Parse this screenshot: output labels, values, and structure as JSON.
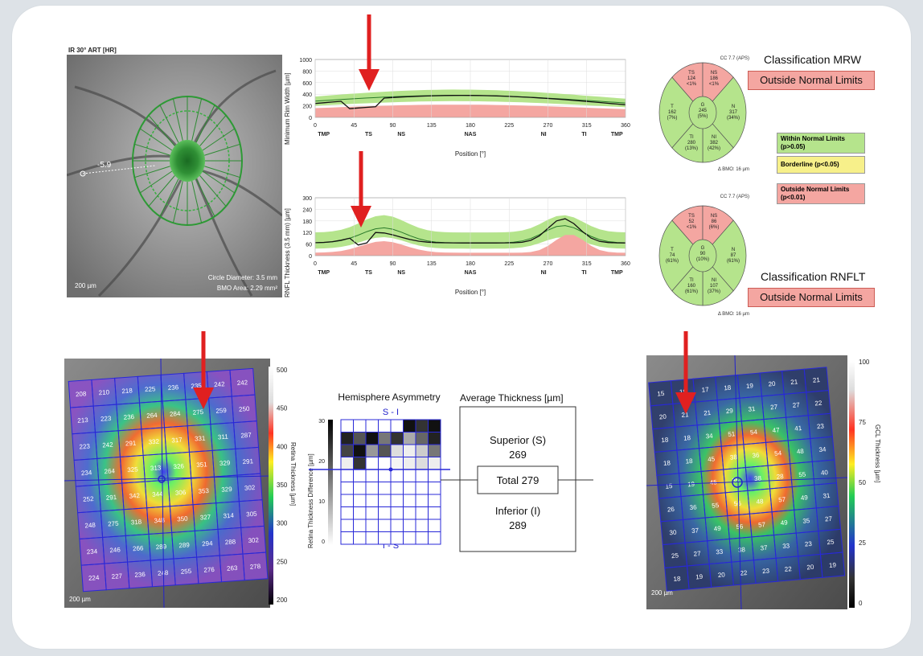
{
  "fundus": {
    "title": "IR 30° ART [HR]",
    "scale": "200 µm",
    "circle_diameter": "Circle Diameter: 3.5 mm",
    "bmo_area": "BMO Area: 2.29 mm²",
    "angle": "-5.9"
  },
  "mrw_chart": {
    "ylabel": "Minimum Rim Width [µm]",
    "yticks": [
      "1000",
      "800",
      "600",
      "400",
      "200",
      "0"
    ],
    "xticks": [
      "0",
      "45",
      "90",
      "135",
      "180",
      "225",
      "270",
      "315",
      "360"
    ],
    "sector_labels": [
      "TMP",
      "TS",
      "NS",
      "NAS",
      "NI",
      "TI",
      "TMP"
    ],
    "xlabel": "Position [°]"
  },
  "rnfl_chart": {
    "ylabel": "RNFL Thickness (3.5 mm) [µm]",
    "yticks": [
      "300",
      "240",
      "180",
      "120",
      "60",
      "0"
    ],
    "xticks": [
      "0",
      "45",
      "90",
      "135",
      "180",
      "225",
      "270",
      "315",
      "360"
    ],
    "sector_labels": [
      "TMP",
      "TS",
      "NS",
      "NAS",
      "NI",
      "TI",
      "TMP"
    ],
    "xlabel": "Position [°]"
  },
  "mrw_pie": {
    "header": "CC 7.7 (APS)",
    "footer": "Δ BMO: 16 µm",
    "TS": {
      "name": "TS",
      "value": "124",
      "pct": "<1%"
    },
    "NS": {
      "name": "NS",
      "value": "186",
      "pct": "<1%"
    },
    "T": {
      "name": "T",
      "value": "162",
      "pct": "(7%)"
    },
    "G": {
      "name": "G",
      "value": "245",
      "pct": "(5%)"
    },
    "N": {
      "name": "N",
      "value": "317",
      "pct": "(34%)"
    },
    "TI": {
      "name": "TI",
      "value": "280",
      "pct": "(13%)"
    },
    "NI": {
      "name": "NI",
      "value": "382",
      "pct": "(42%)"
    }
  },
  "rnfl_pie": {
    "header": "CC 7.7 (APS)",
    "footer": "Δ BMO: 16 µm",
    "TS": {
      "name": "TS",
      "value": "52",
      "pct": "<1%"
    },
    "NS": {
      "name": "NS",
      "value": "86",
      "pct": "(6%)"
    },
    "T": {
      "name": "T",
      "value": "74",
      "pct": "(61%)"
    },
    "G": {
      "name": "G",
      "value": "90",
      "pct": "(10%)"
    },
    "N": {
      "name": "N",
      "value": "87",
      "pct": "(61%)"
    },
    "TI": {
      "name": "TI",
      "value": "160",
      "pct": "(61%)"
    },
    "NI": {
      "name": "NI",
      "value": "107",
      "pct": "(37%)"
    }
  },
  "classification": {
    "mrw_title": "Classification MRW",
    "mrw_result": "Outside Normal Limits",
    "rnflt_title": "Classification RNFLT",
    "rnflt_result": "Outside Normal Limits",
    "legend": {
      "within": "Within Normal Limits",
      "within_p": "(p>0.05)",
      "borderline": "Borderline (p<0.05)",
      "outside": "Outside Normal Limits",
      "outside_p": "(p<0.01)"
    },
    "colors": {
      "within": "#b5e48c",
      "borderline": "#f7f08a",
      "outside": "#f4a6a1"
    }
  },
  "retina_map": {
    "scale": "200 µm",
    "colorbar_label": "Retina Thickness [µm]",
    "colorbar_ticks": [
      "500",
      "450",
      "400",
      "350",
      "300",
      "250",
      "200"
    ],
    "grid": [
      [
        "208",
        "210",
        "218",
        "225",
        "236",
        "235",
        "242",
        "242"
      ],
      [
        "213",
        "223",
        "236",
        "264",
        "284",
        "275",
        "259",
        "250"
      ],
      [
        "223",
        "242",
        "291",
        "332",
        "317",
        "331",
        "311",
        "287"
      ],
      [
        "234",
        "264",
        "325",
        "313",
        "326",
        "351",
        "329",
        "291"
      ],
      [
        "252",
        "291",
        "342",
        "344",
        "306",
        "353",
        "329",
        "302"
      ],
      [
        "248",
        "275",
        "318",
        "348",
        "350",
        "327",
        "314",
        "305"
      ],
      [
        "234",
        "246",
        "266",
        "289",
        "289",
        "294",
        "288",
        "302"
      ],
      [
        "224",
        "227",
        "236",
        "248",
        "255",
        "276",
        "263",
        "278"
      ]
    ]
  },
  "asymmetry": {
    "title": "Hemisphere Asymmetry",
    "top_label": "S - I",
    "bottom_label": "I - S",
    "ylabel": "Retina Thickness Difference [µm]",
    "yticks": [
      "30",
      "20",
      "10",
      "0"
    ]
  },
  "average": {
    "title": "Average Thickness [µm]",
    "superior_label": "Superior (S)",
    "superior_value": "269",
    "total_label": "Total 279",
    "inferior_label": "Inferior (I)",
    "inferior_value": "289"
  },
  "gcl_map": {
    "scale": "200 µm",
    "colorbar_label": "GCL Thickness [µm]",
    "colorbar_ticks": [
      "100",
      "75",
      "50",
      "25",
      "0"
    ],
    "grid": [
      [
        "15",
        "19",
        "17",
        "18",
        "19",
        "20",
        "21",
        "21"
      ],
      [
        "20",
        "21",
        "21",
        "29",
        "31",
        "27",
        "27",
        "22"
      ],
      [
        "18",
        "18",
        "34",
        "51",
        "54",
        "47",
        "41",
        "23"
      ],
      [
        "18",
        "18",
        "45",
        "38",
        "36",
        "54",
        "48",
        "34"
      ],
      [
        "15",
        "19",
        "45",
        "35",
        "38",
        "28",
        "55",
        "40"
      ],
      [
        "26",
        "36",
        "55",
        "56",
        "48",
        "57",
        "49",
        "31"
      ],
      [
        "30",
        "37",
        "49",
        "56",
        "57",
        "49",
        "35",
        "27"
      ],
      [
        "25",
        "27",
        "33",
        "38",
        "37",
        "33",
        "23",
        "25"
      ],
      [
        "18",
        "19",
        "20",
        "22",
        "23",
        "22",
        "20",
        "19"
      ]
    ]
  }
}
